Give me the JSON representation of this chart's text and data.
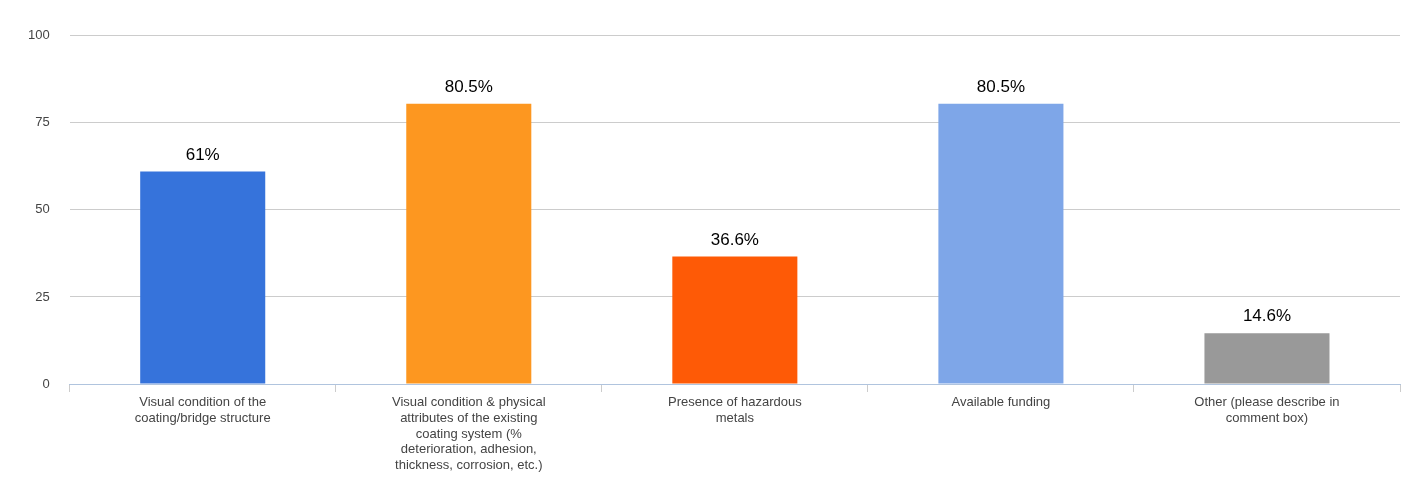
{
  "chart_data": {
    "type": "bar",
    "categories": [
      "Visual condition of the coating/bridge structure",
      "Visual condition & physical attributes of the existing coating system (% deterioration, adhesion, thickness, corrosion, etc.)",
      "Presence of hazardous metals",
      "Available funding",
      "Other (please describe in comment box)"
    ],
    "values": [
      61,
      80.5,
      36.6,
      80.5,
      14.6
    ],
    "colors": [
      "#3673db",
      "#fd9720",
      "#fe5a06",
      "#7ea6e8",
      "#999999"
    ],
    "value_labels": [
      "61%",
      "80.5%",
      "36.6%",
      "80.5%",
      "14.6%"
    ],
    "ylim": [
      0,
      100
    ],
    "yticks": [
      0,
      25,
      50,
      75,
      100
    ],
    "grid": "y"
  }
}
